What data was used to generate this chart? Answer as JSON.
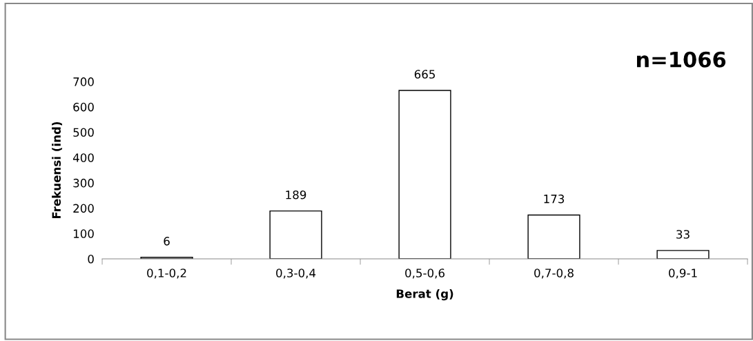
{
  "chart_data": {
    "type": "bar",
    "xlabel": "Berat (g)",
    "ylabel": "Frekuensi (ind)",
    "categories": [
      "0,1-0,2",
      "0,3-0,4",
      "0,5-0,6",
      "0,7-0,8",
      "0,9-1"
    ],
    "values": [
      6,
      189,
      665,
      173,
      33
    ],
    "color": "#ffffff",
    "ylim": [
      0,
      700
    ],
    "yticks": [
      0,
      100,
      200,
      300,
      400,
      500,
      600,
      700
    ],
    "data_labels": true,
    "grid": false,
    "legend": false,
    "annotations": [
      "n=1066"
    ]
  }
}
